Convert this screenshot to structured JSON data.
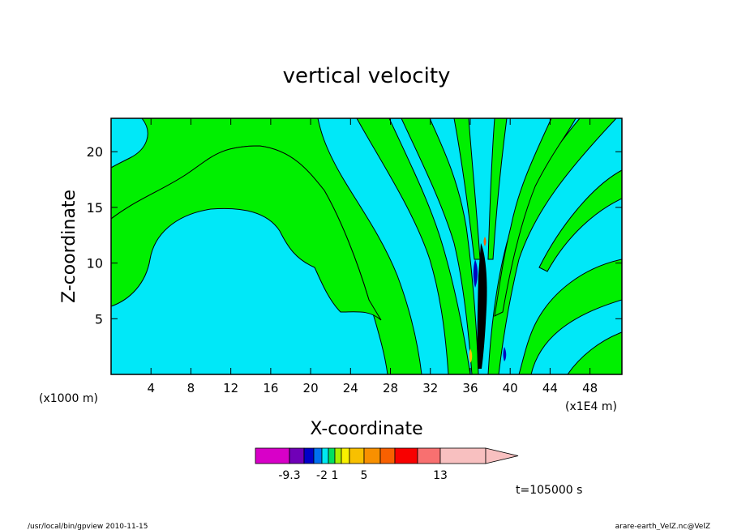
{
  "chart_data": {
    "type": "heatmap",
    "title": "vertical velocity",
    "xlabel": "X-coordinate",
    "ylabel": "Z-coordinate",
    "x_unit_left": "(x1000 m)",
    "x_unit_right": "(x1E4 m)",
    "x_ticks": [
      "4",
      "8",
      "12",
      "16",
      "20",
      "24",
      "28",
      "32",
      "36",
      "40",
      "44",
      "48"
    ],
    "y_ticks": [
      "5",
      "10",
      "15",
      "20"
    ],
    "xlim": [
      0,
      51.2
    ],
    "ylim": [
      0,
      23
    ],
    "colorbar": {
      "colors": [
        "#d800c8",
        "#7000b8",
        "#0000c8",
        "#0070f0",
        "#00e8f0",
        "#00e060",
        "#a8f000",
        "#f8f000",
        "#f8c000",
        "#f89000",
        "#f86000",
        "#f80000",
        "#f87070",
        "#f8c0c0"
      ],
      "labels": [
        "-9.3",
        "-2",
        "1",
        "5",
        "13"
      ],
      "label_positions_index": [
        0,
        3,
        5,
        8,
        12
      ]
    },
    "fill_colors": {
      "positive_small": "#00f000",
      "negative_small": "#00e8f8",
      "strong_down": "#0000c0",
      "strong_up": "#000000"
    },
    "time_label": "t=105000 s"
  },
  "footer": {
    "left": "/usr/local/bin/gpview   2010-11-15",
    "right": "arare-earth_VelZ.nc@VelZ"
  }
}
